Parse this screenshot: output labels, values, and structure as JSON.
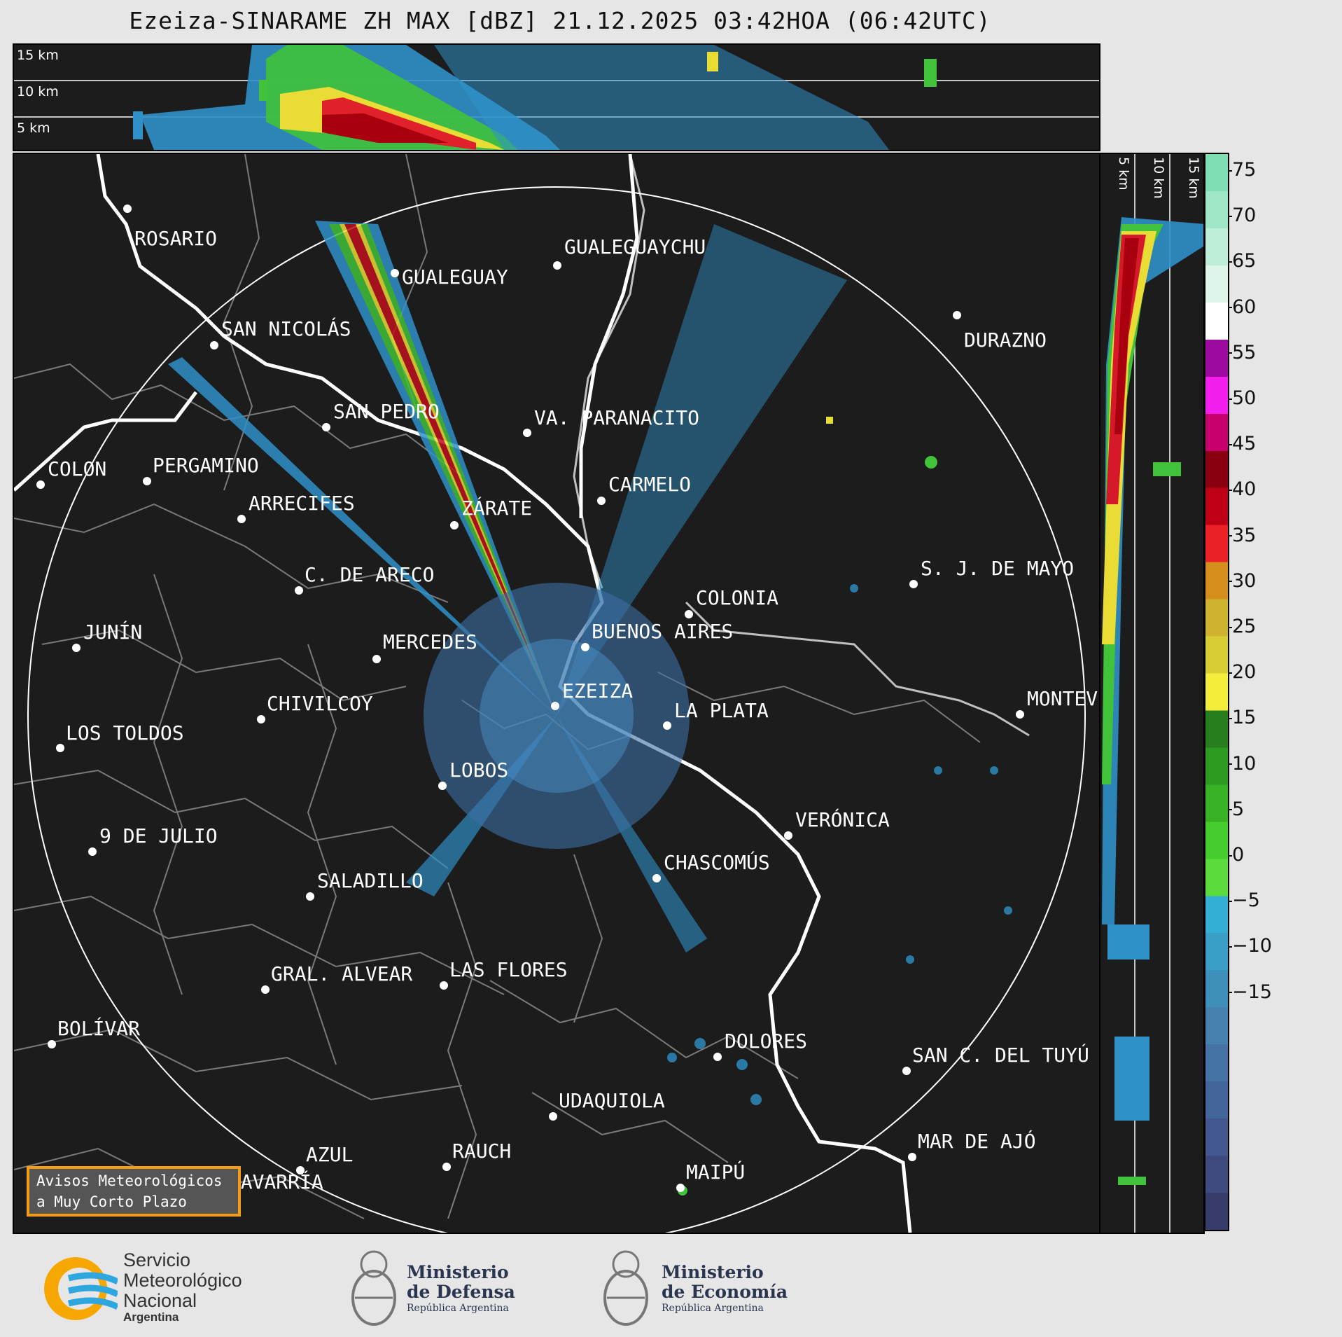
{
  "title": "Ezeiza-SINARAME ZH MAX [dBZ] 21.12.2025 03:42HOA (06:42UTC)",
  "top_panel": {
    "height_labels": [
      "15 km",
      "10 km",
      "5 km"
    ]
  },
  "side_panel": {
    "height_labels": [
      "5 km",
      "10 km",
      "15 km"
    ]
  },
  "cities": [
    {
      "name": "ROSARIO"
    },
    {
      "name": "GUALEGUAYCHU"
    },
    {
      "name": "GUALEGUAY"
    },
    {
      "name": "SAN NICOLÁS"
    },
    {
      "name": "DURAZNO"
    },
    {
      "name": "SAN PEDRO"
    },
    {
      "name": "VA. PARANACITO"
    },
    {
      "name": "COLON"
    },
    {
      "name": "PERGAMINO"
    },
    {
      "name": "CARMELO"
    },
    {
      "name": "ARRECIFES"
    },
    {
      "name": "ZÁRATE"
    },
    {
      "name": "S. J. DE MAYO"
    },
    {
      "name": "C. DE ARECO"
    },
    {
      "name": "COLONIA"
    },
    {
      "name": "JUNÍN"
    },
    {
      "name": "MERCEDES"
    },
    {
      "name": "BUENOS AIRES"
    },
    {
      "name": "EZEIZA"
    },
    {
      "name": "MONTEV"
    },
    {
      "name": "CHIVILCOY"
    },
    {
      "name": "LA PLATA"
    },
    {
      "name": "LOS TOLDOS"
    },
    {
      "name": "LOBOS"
    },
    {
      "name": "VERÓNICA"
    },
    {
      "name": "9 DE JULIO"
    },
    {
      "name": "CHASCOMÚS"
    },
    {
      "name": "SALADILLO"
    },
    {
      "name": "GRAL. ALVEAR"
    },
    {
      "name": "LAS FLORES"
    },
    {
      "name": "BOLÍVAR"
    },
    {
      "name": "DOLORES"
    },
    {
      "name": "SAN C. DEL TUYÚ"
    },
    {
      "name": "UDAQUIOLA"
    },
    {
      "name": "MAR DE AJÓ"
    },
    {
      "name": "AZUL"
    },
    {
      "name": "RAUCH"
    },
    {
      "name": "OLAVARRÍA"
    },
    {
      "name": "MAIPÚ"
    }
  ],
  "colorbar": {
    "unit": "dBZ",
    "ticks": [
      "75",
      "70",
      "65",
      "60",
      "55",
      "50",
      "45",
      "40",
      "35",
      "30",
      "25",
      "20",
      "15",
      "10",
      "5",
      "0",
      "−5",
      "−10",
      "−15"
    ],
    "colors": [
      "#383c6a",
      "#3f4a7e",
      "#42588e",
      "#44659a",
      "#4573a6",
      "#4681b0",
      "#3f8fbb",
      "#3a9ec7",
      "#34aed4",
      "#5bdc3c",
      "#46cc2c",
      "#37b225",
      "#2d9a22",
      "#267e1c",
      "#f4ee3a",
      "#d9cd35",
      "#cfb22f",
      "#d58d1c",
      "#ea2127",
      "#bd0015",
      "#8b0010",
      "#c8006d",
      "#f31ded",
      "#9c0aa0",
      "#ffffff",
      "#def5ea",
      "#bfeed8",
      "#9fe6c6",
      "#80deb4"
    ]
  },
  "avisos": {
    "line1": "Avisos Meteorológicos",
    "line2": "a Muy Corto Plazo"
  },
  "logos": {
    "smn": {
      "line1": "Servicio",
      "line2": "Meteorológico",
      "line3": "Nacional",
      "line4": "Argentina"
    },
    "defensa": {
      "line1": "Ministerio",
      "line2": "de Defensa",
      "line3": "República Argentina"
    },
    "economia": {
      "line1": "Ministerio",
      "line2": "de Economía",
      "line3": "República Argentina"
    }
  }
}
